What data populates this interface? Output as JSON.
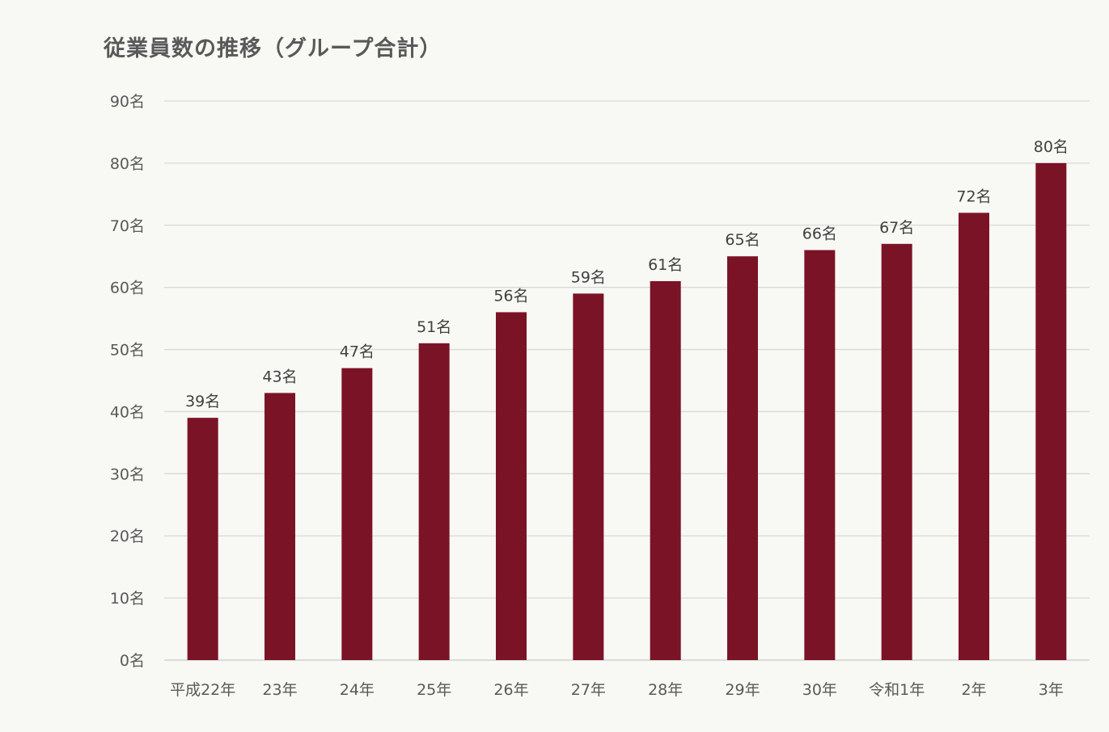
{
  "chart_data": {
    "type": "bar",
    "title": "従業員数の推移（グループ合計）",
    "xlabel": "",
    "ylabel": "",
    "unit_suffix": "名",
    "ylim": [
      0,
      90
    ],
    "y_ticks": [
      0,
      10,
      20,
      30,
      40,
      50,
      60,
      70,
      80,
      90
    ],
    "y_tick_labels": [
      "0名",
      "10名",
      "20名",
      "30名",
      "40名",
      "50名",
      "60名",
      "70名",
      "80名",
      "90名"
    ],
    "categories": [
      "平成22年",
      "23年",
      "24年",
      "25年",
      "26年",
      "27年",
      "28年",
      "29年",
      "30年",
      "令和1年",
      "2年",
      "3年"
    ],
    "values": [
      39,
      43,
      47,
      51,
      56,
      59,
      61,
      65,
      66,
      67,
      72,
      80
    ],
    "data_labels": [
      "39名",
      "43名",
      "47名",
      "51名",
      "56名",
      "59名",
      "61名",
      "65名",
      "66名",
      "67名",
      "72名",
      "80名"
    ],
    "grid": true,
    "legend": "none",
    "bar_color": "#7b1326",
    "grid_color": "#d9d9d9",
    "background_color": "#f8f8f4"
  }
}
